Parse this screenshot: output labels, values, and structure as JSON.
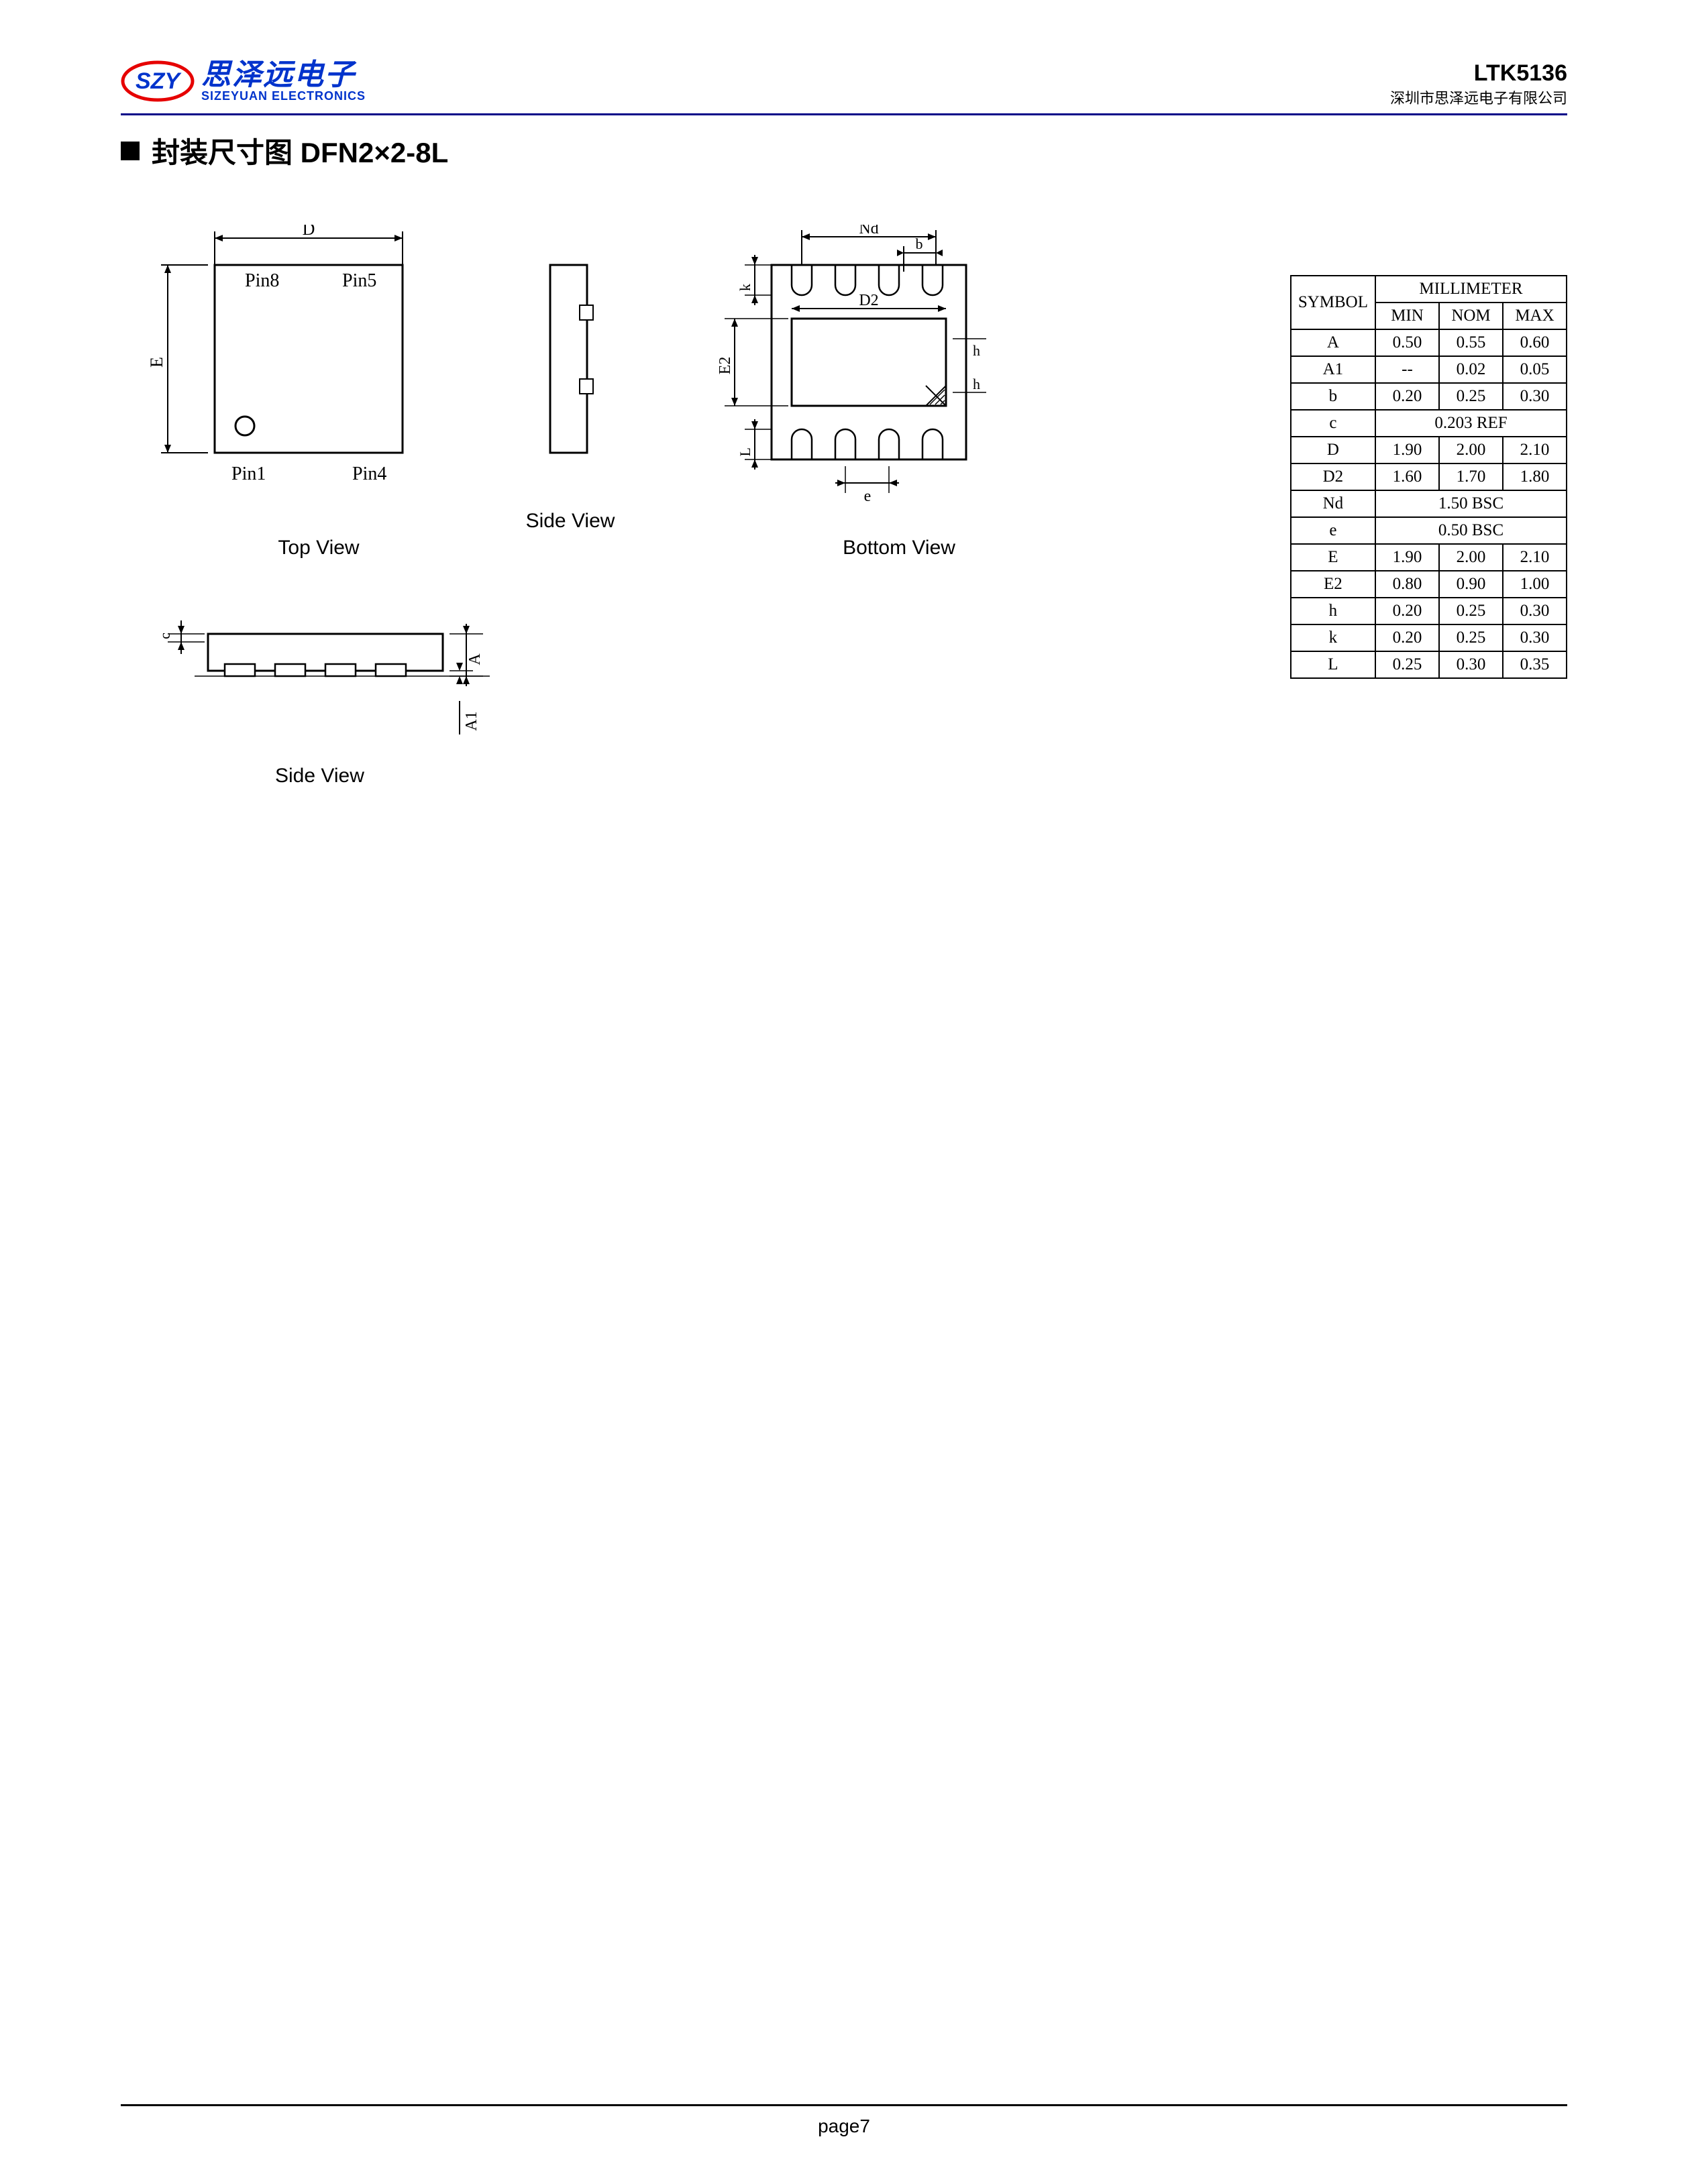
{
  "header": {
    "logo_cn": "思泽远电子",
    "logo_en": "SIZEYUAN ELECTRONICS",
    "part_number": "LTK5136",
    "company_name": "深圳市思泽远电子有限公司"
  },
  "section": {
    "title_cn": "封装尺寸图",
    "title_suffix": " DFN2×2-8L"
  },
  "views": {
    "top": "Top View",
    "side": "Side View",
    "bottom": "Bottom View"
  },
  "pins": {
    "p1": "Pin1",
    "p4": "Pin4",
    "p5": "Pin5",
    "p8": "Pin8"
  },
  "dim_labels": {
    "D": "D",
    "E": "E",
    "Nd": "Nd",
    "b": "b",
    "D2": "D2",
    "E2": "E2",
    "h": "h",
    "h2": "h",
    "k": "k",
    "L": "L",
    "e": "e",
    "c": "c",
    "A": "A",
    "A1": "A1"
  },
  "table": {
    "header_symbol": "SYMBOL",
    "header_unit": "MILLIMETER",
    "header_min": "MIN",
    "header_nom": "NOM",
    "header_max": "MAX",
    "rows": [
      {
        "sym": "A",
        "min": "0.50",
        "nom": "0.55",
        "max": "0.60",
        "span": false
      },
      {
        "sym": "A1",
        "min": "--",
        "nom": "0.02",
        "max": "0.05",
        "span": false
      },
      {
        "sym": "b",
        "min": "0.20",
        "nom": "0.25",
        "max": "0.30",
        "span": false
      },
      {
        "sym": "c",
        "val": "0.203 REF",
        "span": true
      },
      {
        "sym": "D",
        "min": "1.90",
        "nom": "2.00",
        "max": "2.10",
        "span": false
      },
      {
        "sym": "D2",
        "min": "1.60",
        "nom": "1.70",
        "max": "1.80",
        "span": false
      },
      {
        "sym": "Nd",
        "val": "1.50 BSC",
        "span": true
      },
      {
        "sym": "e",
        "val": "0.50 BSC",
        "span": true
      },
      {
        "sym": "E",
        "min": "1.90",
        "nom": "2.00",
        "max": "2.10",
        "span": false
      },
      {
        "sym": "E2",
        "min": "0.80",
        "nom": "0.90",
        "max": "1.00",
        "span": false
      },
      {
        "sym": "h",
        "min": "0.20",
        "nom": "0.25",
        "max": "0.30",
        "span": false
      },
      {
        "sym": "k",
        "min": "0.20",
        "nom": "0.25",
        "max": "0.30",
        "span": false
      },
      {
        "sym": "L",
        "min": "0.25",
        "nom": "0.30",
        "max": "0.35",
        "span": false
      }
    ]
  },
  "footer": {
    "page": "page7"
  },
  "colors": {
    "logo_blue": "#0033cc",
    "logo_red": "#e60000",
    "header_line": "#000088",
    "line": "#000000",
    "bg": "#ffffff"
  }
}
